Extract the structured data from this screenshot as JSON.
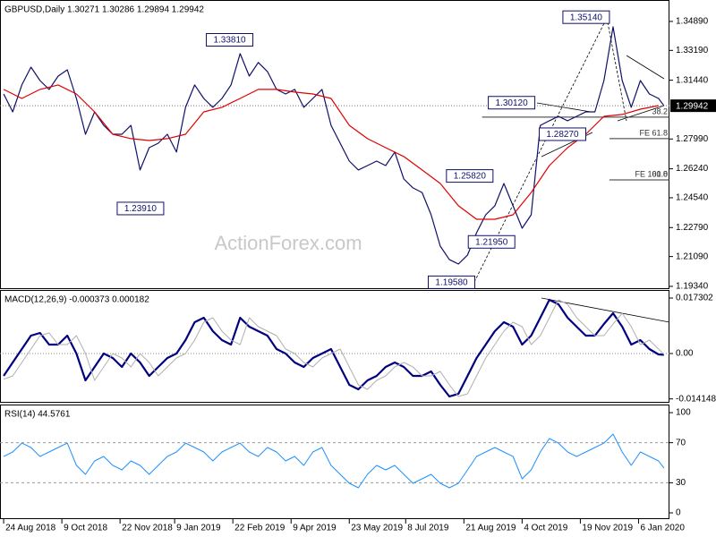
{
  "chart_data": [
    {
      "type": "line",
      "title": "GBPUSD,Daily  1.30271 1.30286 1.29894 1.29942",
      "watermark": "ActionForex.com",
      "xlim": [
        -2,
        366
      ],
      "ylim": [
        1.1918,
        1.3599
      ],
      "yticks": [
        {
          "value": 1.3489,
          "label": "1.34890"
        },
        {
          "value": 1.3319,
          "label": "1.33190"
        },
        {
          "value": 1.3144,
          "label": "1.31440"
        },
        {
          "value": 1.2799,
          "label": "1.27990"
        },
        {
          "value": 1.2624,
          "label": "1.26240"
        },
        {
          "value": 1.2454,
          "label": "1.24540"
        },
        {
          "value": 1.2279,
          "label": "1.22790"
        },
        {
          "value": 1.2109,
          "label": "1.21090"
        },
        {
          "value": 1.1934,
          "label": "1.19340"
        }
      ],
      "current": {
        "value": 1.29942,
        "label": "1.29942"
      },
      "series": [
        {
          "name": "GBPUSD",
          "color": "#10106a",
          "x": [
            0,
            5,
            10,
            15,
            20,
            25,
            30,
            35,
            40,
            45,
            50,
            55,
            60,
            65,
            70,
            75,
            80,
            85,
            90,
            95,
            100,
            105,
            110,
            115,
            120,
            125,
            130,
            135,
            140,
            145,
            150,
            155,
            160,
            165,
            170,
            175,
            180,
            185,
            190,
            195,
            200,
            205,
            210,
            215,
            220,
            225,
            230,
            235,
            240,
            245,
            250,
            255,
            260,
            265,
            270,
            275,
            280,
            285,
            290,
            295,
            300,
            305,
            310,
            315,
            320,
            325,
            330,
            335,
            340,
            345,
            350,
            355,
            360,
            363
          ],
          "values": [
            1.3063,
            1.2958,
            1.3116,
            1.3221,
            1.3142,
            1.309,
            1.3168,
            1.3205,
            1.3037,
            1.2827,
            1.2958,
            1.2879,
            1.2827,
            1.2827,
            1.2879,
            1.2617,
            1.2748,
            1.2774,
            1.2827,
            1.2722,
            1.2985,
            1.3116,
            1.3037,
            1.2985,
            1.3037,
            1.3116,
            1.33,
            1.3168,
            1.3248,
            1.3195,
            1.309,
            1.3063,
            1.309,
            1.2985,
            1.3037,
            1.309,
            1.2879,
            1.2774,
            1.2669,
            1.2617,
            1.2643,
            1.2669,
            1.2643,
            1.2722,
            1.2564,
            1.2512,
            1.2485,
            1.2354,
            1.217,
            1.2091,
            1.2065,
            1.2118,
            1.2249,
            1.2354,
            1.2407,
            1.2538,
            1.2407,
            1.2275,
            1.2354,
            1.2879,
            1.2906,
            1.2932,
            1.2906,
            1.2932,
            1.2958,
            1.2958,
            1.3142,
            1.3457,
            1.3142,
            1.2985,
            1.3142,
            1.3063,
            1.3037,
            1.2994
          ]
        },
        {
          "name": "MA",
          "color": "#e00000",
          "x": [
            0,
            10,
            20,
            30,
            40,
            50,
            60,
            70,
            80,
            90,
            100,
            110,
            120,
            130,
            140,
            150,
            160,
            170,
            180,
            190,
            200,
            210,
            220,
            230,
            240,
            250,
            260,
            270,
            280,
            290,
            300,
            310,
            320,
            330,
            340,
            350,
            360
          ],
          "values": [
            1.309,
            1.3037,
            1.309,
            1.3116,
            1.3063,
            1.2958,
            1.2827,
            1.2801,
            1.279,
            1.2801,
            1.2827,
            1.2958,
            1.2985,
            1.3037,
            1.309,
            1.309,
            1.3074,
            1.3063,
            1.3037,
            1.2879,
            1.2801,
            1.2748,
            1.2696,
            1.2617,
            1.2538,
            1.2407,
            1.2328,
            1.2328,
            1.2354,
            1.2485,
            1.2643,
            1.2748,
            1.2827,
            1.2932,
            1.2943,
            1.2974,
            1.2995
          ]
        }
      ],
      "price_labels": [
        {
          "value": 1.3381,
          "label": "1.33810",
          "x": 137
        },
        {
          "value": 1.2391,
          "label": "1.23910",
          "x": 88
        },
        {
          "value": 1.3514,
          "label": "1.35140",
          "x": 333
        },
        {
          "value": 1.3012,
          "label": "1.30120",
          "x": 292
        },
        {
          "value": 1.2827,
          "label": "1.28270",
          "x": 320
        },
        {
          "value": 1.2582,
          "label": "1.25820",
          "x": 269
        },
        {
          "value": 1.2195,
          "label": "1.21950",
          "x": 281
        },
        {
          "value": 1.1958,
          "label": "1.19580",
          "x": 259
        }
      ],
      "levels": [
        {
          "label": "38.2",
          "value": 1.2927,
          "from": 263
        },
        {
          "label": "FE 61.8",
          "value": 1.2801,
          "from": 333
        },
        {
          "label": "FE 100.0",
          "value": 1.2559,
          "from": 333
        },
        {
          "label": "61.8",
          "value": 1.2559,
          "from": 333
        }
      ]
    },
    {
      "type": "line",
      "title": "MACD(12,26,9) -0.000373 0.000182",
      "xlim": [
        -2,
        366
      ],
      "ylim": [
        -0.01535,
        0.01898
      ],
      "zero_line": true,
      "yticks": [
        0.017302,
        {
          "value": 0,
          "label": "0.00"
        },
        -0.014148
      ],
      "series": [
        {
          "name": "MACD",
          "color": "#000080",
          "width": 2.2,
          "x": [
            0,
            5,
            10,
            15,
            20,
            25,
            30,
            35,
            40,
            45,
            50,
            55,
            60,
            65,
            70,
            75,
            80,
            85,
            90,
            95,
            100,
            105,
            110,
            115,
            120,
            125,
            130,
            135,
            140,
            145,
            150,
            155,
            160,
            165,
            170,
            175,
            180,
            185,
            190,
            195,
            200,
            205,
            210,
            215,
            220,
            225,
            230,
            235,
            240,
            245,
            250,
            255,
            260,
            265,
            270,
            275,
            280,
            285,
            290,
            295,
            300,
            305,
            310,
            315,
            320,
            325,
            330,
            335,
            340,
            345,
            350,
            355,
            360,
            363
          ],
          "values": [
            -0.00698,
            -0.00279,
            0.0014,
            0.00558,
            0.00642,
            0.00279,
            0.00279,
            0.00558,
            0,
            -0.00837,
            -0.00419,
            0,
            -0.0014,
            -0.00419,
            0,
            -0.00279,
            -0.00698,
            -0.00419,
            -0.0014,
            0,
            0.00419,
            0.00977,
            0.01116,
            0.00698,
            0.00419,
            0.00279,
            0.01116,
            0.00837,
            0.00698,
            0.00558,
            0.0014,
            0,
            -0.00279,
            -0.00419,
            -0.0014,
            0,
            0.0014,
            -0.00419,
            -0.00977,
            -0.01116,
            -0.00837,
            -0.00698,
            -0.00419,
            -0.00279,
            -0.00419,
            -0.00698,
            -0.00698,
            -0.00558,
            -0.00977,
            -0.0134,
            -0.01256,
            -0.00698,
            -0.0014,
            0.00279,
            0.00698,
            0.00977,
            0.00837,
            0.00279,
            0.00558,
            0.01116,
            0.01675,
            0.01535,
            0.01116,
            0.00837,
            0.00558,
            0.00558,
            0.00921,
            0.01256,
            0.00837,
            0.00279,
            0.00419,
            0.0014,
            -0.00028,
            -0.0004
          ]
        },
        {
          "name": "Signal",
          "color": "#b0b0b0",
          "width": 1,
          "x": [
            0,
            5,
            10,
            15,
            20,
            25,
            30,
            35,
            40,
            45,
            50,
            55,
            60,
            65,
            70,
            75,
            80,
            85,
            90,
            95,
            100,
            105,
            110,
            115,
            120,
            125,
            130,
            135,
            140,
            145,
            150,
            155,
            160,
            165,
            170,
            175,
            180,
            185,
            190,
            195,
            200,
            205,
            210,
            215,
            220,
            225,
            230,
            235,
            240,
            245,
            250,
            255,
            260,
            265,
            270,
            275,
            280,
            285,
            290,
            295,
            300,
            305,
            310,
            315,
            320,
            325,
            330,
            335,
            340,
            345,
            350,
            355,
            360,
            363
          ],
          "values": [
            -0.008,
            -0.00698,
            -0.00279,
            0.0014,
            0.00558,
            0.00642,
            0.00279,
            0.00279,
            0.00558,
            0,
            -0.00837,
            -0.00419,
            0,
            -0.0014,
            -0.00419,
            0,
            -0.00279,
            -0.00698,
            -0.00419,
            -0.0014,
            0,
            0.00419,
            0.00977,
            0.01116,
            0.00698,
            0.00419,
            0.00279,
            0.01116,
            0.00837,
            0.00698,
            0.00558,
            0.0014,
            0,
            -0.00279,
            -0.00419,
            -0.0014,
            0,
            0.0014,
            -0.00419,
            -0.00977,
            -0.01116,
            -0.00837,
            -0.00698,
            -0.00419,
            -0.00279,
            -0.00419,
            -0.00698,
            -0.00698,
            -0.00558,
            -0.00977,
            -0.0134,
            -0.01256,
            -0.00698,
            -0.0014,
            0.00279,
            0.00698,
            0.00977,
            0.00837,
            0.00279,
            0.00558,
            0.01116,
            0.01675,
            0.01535,
            0.01116,
            0.00837,
            0.00558,
            0.00558,
            0.00921,
            0.01256,
            0.00837,
            0.00279,
            0.00419,
            0.0014,
            -0.00028
          ]
        }
      ]
    },
    {
      "type": "line",
      "title": "RSI(14) 44.5761",
      "xlim": [
        -2,
        366
      ],
      "ylim": [
        -6.25,
        105.4
      ],
      "yticks": [
        100,
        70,
        30,
        0
      ],
      "levels": [
        30,
        70
      ],
      "xticks": [
        {
          "value": 0,
          "label": "24 Aug 2018"
        },
        {
          "value": 32,
          "label": "9 Oct 2018"
        },
        {
          "value": 64,
          "label": "22 Nov 2018"
        },
        {
          "value": 94,
          "label": "9 Jan 2019"
        },
        {
          "value": 126,
          "label": "22 Feb 2019"
        },
        {
          "value": 158,
          "label": "9 Apr 2019"
        },
        {
          "value": 190,
          "label": "23 May 2019"
        },
        {
          "value": 221,
          "label": "8 Jul 2019"
        },
        {
          "value": 253,
          "label": "21 Aug 2019"
        },
        {
          "value": 285,
          "label": "4 Oct 2019"
        },
        {
          "value": 317,
          "label": "19 Nov 2019"
        },
        {
          "value": 349,
          "label": "6 Jan 2020"
        }
      ],
      "series": [
        {
          "name": "RSI",
          "color": "#1e90ff",
          "width": 1,
          "x": [
            0,
            5,
            10,
            15,
            20,
            25,
            30,
            35,
            40,
            45,
            50,
            55,
            60,
            65,
            70,
            75,
            80,
            85,
            90,
            95,
            100,
            105,
            110,
            115,
            120,
            125,
            130,
            135,
            140,
            145,
            150,
            155,
            160,
            165,
            170,
            175,
            180,
            185,
            190,
            195,
            200,
            205,
            210,
            215,
            220,
            225,
            230,
            235,
            240,
            245,
            250,
            255,
            260,
            265,
            270,
            275,
            280,
            285,
            290,
            295,
            300,
            305,
            310,
            315,
            320,
            325,
            330,
            335,
            340,
            345,
            350,
            355,
            360,
            363
          ],
          "values": [
            56.3,
            60.7,
            69.6,
            65.2,
            56.3,
            60.7,
            65.2,
            69.6,
            47.3,
            38.4,
            51.8,
            56.3,
            47.3,
            42.9,
            51.8,
            47.3,
            38.4,
            47.3,
            56.3,
            60.7,
            69.6,
            65.2,
            60.7,
            51.8,
            60.7,
            65.2,
            69.6,
            60.7,
            56.3,
            65.2,
            60.7,
            51.8,
            56.3,
            47.3,
            60.7,
            65.2,
            47.3,
            38.4,
            29.5,
            25.0,
            38.4,
            47.3,
            42.9,
            47.3,
            38.4,
            29.5,
            33.9,
            38.4,
            29.5,
            25.0,
            29.5,
            42.9,
            56.3,
            60.7,
            65.2,
            60.7,
            56.3,
            33.9,
            42.9,
            60.7,
            74.1,
            69.6,
            60.7,
            56.3,
            60.7,
            65.2,
            69.6,
            78.6,
            60.7,
            47.3,
            60.7,
            56.3,
            51.8,
            44.6
          ]
        }
      ]
    }
  ]
}
